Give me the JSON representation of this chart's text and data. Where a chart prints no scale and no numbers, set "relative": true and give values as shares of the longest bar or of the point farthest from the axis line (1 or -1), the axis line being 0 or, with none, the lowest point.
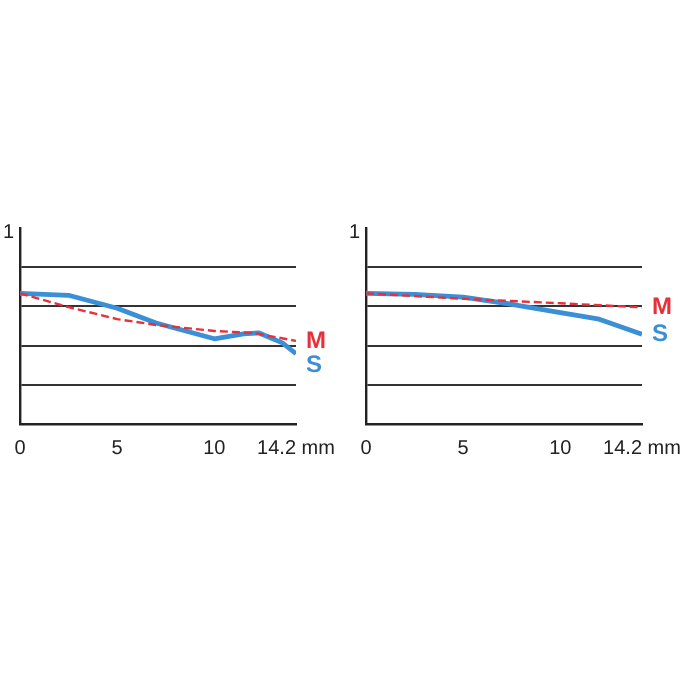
{
  "chart_data": [
    {
      "type": "line",
      "relative": true,
      "annotations": [
        "1"
      ],
      "x": [
        0,
        2.5,
        5,
        7,
        10,
        12,
        14.2
      ],
      "xlim": [
        0,
        14.2
      ],
      "xticks": [
        0,
        5,
        10,
        {
          "value": 14.2,
          "label": "14.2 mm"
        }
      ],
      "grid": "y",
      "legend": false,
      "marker": "none",
      "series": [
        {
          "name": "M",
          "color": "#e8303a",
          "line_style": "dashed",
          "values": [
            1,
            0.894,
            0.803,
            0.758,
            0.712,
            0.697,
            0.636
          ]
        },
        {
          "name": "S",
          "color": "#3a8fd6",
          "line_style": "solid",
          "x": [
            0,
            2.5,
            5,
            7,
            10,
            11.5,
            12.3,
            13.5,
            14.2
          ],
          "values": [
            1,
            0.985,
            0.886,
            0.773,
            0.652,
            0.689,
            0.697,
            0.621,
            0.538
          ]
        }
      ]
    },
    {
      "type": "line",
      "relative": true,
      "annotations": [
        "1"
      ],
      "x": [
        0,
        5,
        10,
        14.2
      ],
      "xlim": [
        0,
        14.2
      ],
      "xticks": [
        0,
        5,
        10,
        {
          "value": 14.2,
          "label": "14.2 mm"
        }
      ],
      "grid": "y",
      "legend": false,
      "marker": "none",
      "series": [
        {
          "name": "M",
          "color": "#e8303a",
          "line_style": "dashed",
          "values": [
            1,
            0.958,
            0.924,
            0.893
          ]
        },
        {
          "name": "S",
          "color": "#3a8fd6",
          "line_style": "solid",
          "x": [
            0,
            2.5,
            5,
            7.5,
            10,
            12,
            14.2
          ],
          "values": [
            1,
            0.992,
            0.971,
            0.916,
            0.852,
            0.802,
            0.687
          ]
        }
      ]
    }
  ]
}
